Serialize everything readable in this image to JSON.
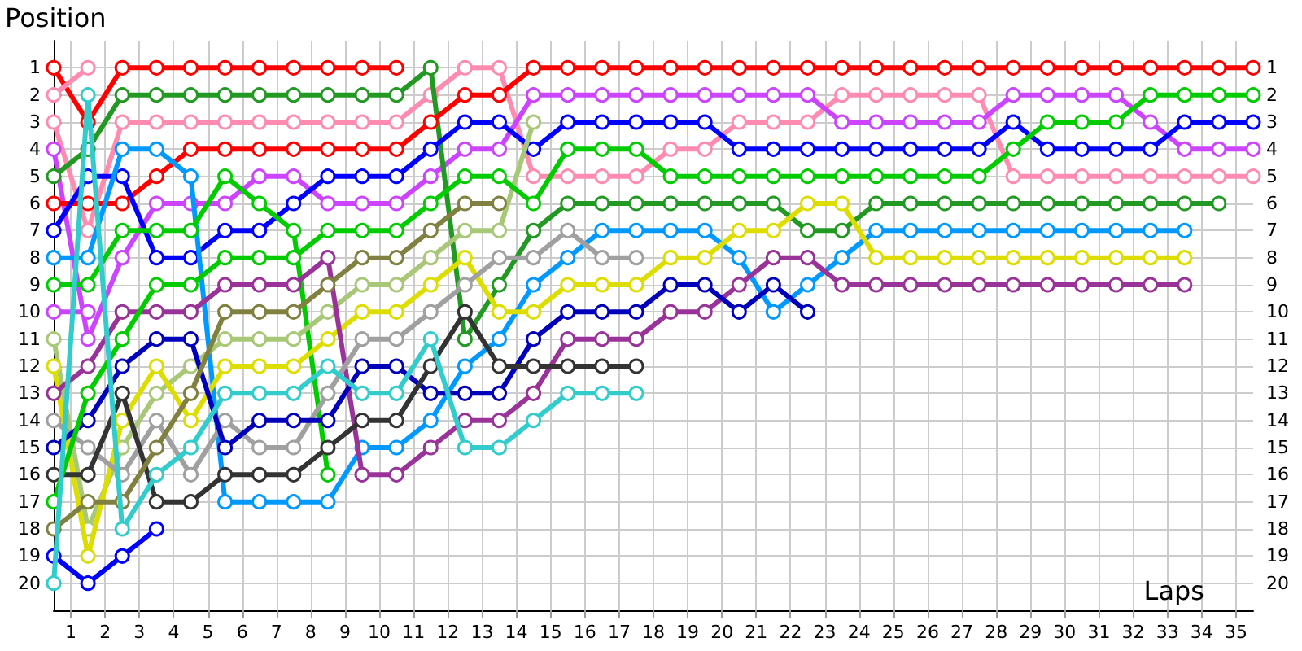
{
  "chart_data": {
    "type": "line",
    "xlabel": "Laps",
    "ylabel": "Position",
    "x": [
      0,
      1,
      2,
      3,
      4,
      5,
      6,
      7,
      8,
      9,
      10,
      11,
      12,
      13,
      14,
      15,
      16,
      17,
      18,
      19,
      20,
      21,
      22,
      23,
      24,
      25,
      26,
      27,
      28,
      29,
      30,
      31,
      32,
      33,
      34,
      35
    ],
    "xlim": [
      0,
      35
    ],
    "xticks": [
      {
        "value": 0.5,
        "label": "1"
      },
      {
        "value": 1.5,
        "label": "2"
      },
      {
        "value": 2.5,
        "label": "3"
      },
      {
        "value": 3.5,
        "label": "4"
      },
      {
        "value": 4.5,
        "label": "5"
      },
      {
        "value": 5.5,
        "label": "6"
      },
      {
        "value": 6.5,
        "label": "7"
      },
      {
        "value": 7.5,
        "label": "8"
      },
      {
        "value": 8.5,
        "label": "9"
      },
      {
        "value": 9.5,
        "label": "10"
      },
      {
        "value": 10.5,
        "label": "11"
      },
      {
        "value": 11.5,
        "label": "12"
      },
      {
        "value": 12.5,
        "label": "13"
      },
      {
        "value": 13.5,
        "label": "14"
      },
      {
        "value": 14.5,
        "label": "15"
      },
      {
        "value": 15.5,
        "label": "16"
      },
      {
        "value": 16.5,
        "label": "17"
      },
      {
        "value": 17.5,
        "label": "18"
      },
      {
        "value": 18.5,
        "label": "19"
      },
      {
        "value": 19.5,
        "label": "20"
      },
      {
        "value": 20.5,
        "label": "21"
      },
      {
        "value": 21.5,
        "label": "22"
      },
      {
        "value": 22.5,
        "label": "23"
      },
      {
        "value": 23.5,
        "label": "24"
      },
      {
        "value": 24.5,
        "label": "25"
      },
      {
        "value": 25.5,
        "label": "26"
      },
      {
        "value": 26.5,
        "label": "27"
      },
      {
        "value": 27.5,
        "label": "28"
      },
      {
        "value": 28.5,
        "label": "29"
      },
      {
        "value": 29.5,
        "label": "30"
      },
      {
        "value": 30.5,
        "label": "31"
      },
      {
        "value": 31.5,
        "label": "32"
      },
      {
        "value": 32.5,
        "label": "33"
      },
      {
        "value": 33.5,
        "label": "34"
      },
      {
        "value": 34.5,
        "label": "35"
      }
    ],
    "ylim": [
      21,
      0
    ],
    "yticks": [
      1,
      2,
      3,
      4,
      5,
      6,
      7,
      8,
      9,
      10,
      11,
      12,
      13,
      14,
      15,
      16,
      17,
      18,
      19,
      20
    ],
    "y2lim": [
      21,
      0
    ],
    "y2ticks": [
      1,
      2,
      3,
      4,
      5,
      6,
      7,
      8,
      9,
      10,
      11,
      12,
      13,
      14,
      15,
      16,
      17,
      18,
      19,
      20
    ],
    "grid": true,
    "legend": false,
    "marker": "circle",
    "line_style": "solid",
    "series": [
      {
        "color": "#ff0000",
        "values": [
          1,
          3,
          1,
          1,
          1,
          1,
          1,
          1,
          1,
          1,
          1,
          null,
          null,
          null,
          null,
          null,
          null,
          null,
          null,
          null,
          null,
          null,
          null,
          null,
          null,
          null,
          null,
          null,
          null,
          null,
          null,
          null,
          null,
          null,
          null,
          null
        ]
      },
      {
        "color": "#ff8cb0",
        "values": [
          2,
          1,
          null,
          null,
          null,
          null,
          null,
          null,
          null,
          null,
          null,
          null,
          null,
          null,
          null,
          null,
          null,
          null,
          null,
          null,
          null,
          null,
          null,
          null,
          null,
          null,
          null,
          null,
          null,
          null,
          null,
          null,
          null,
          null,
          null,
          null
        ]
      },
      {
        "color": "#ff8cb0",
        "values": [
          3,
          7,
          3,
          3,
          3,
          3,
          3,
          3,
          3,
          3,
          3,
          2,
          1,
          1,
          5,
          5,
          5,
          5,
          4,
          4,
          3,
          3,
          3,
          2,
          2,
          2,
          2,
          2,
          5,
          5,
          5,
          5,
          5,
          5,
          5,
          5
        ]
      },
      {
        "color": "#cc44ff",
        "values": [
          4,
          11,
          8,
          6,
          6,
          6,
          5,
          5,
          6,
          6,
          6,
          5,
          4,
          4,
          2,
          2,
          2,
          2,
          2,
          2,
          2,
          2,
          2,
          3,
          3,
          3,
          3,
          3,
          2,
          2,
          2,
          2,
          3,
          4,
          4,
          4
        ]
      },
      {
        "color": "#229922",
        "values": [
          5,
          4,
          2,
          2,
          2,
          2,
          2,
          2,
          2,
          2,
          2,
          1,
          11,
          9,
          7,
          6,
          6,
          6,
          6,
          6,
          6,
          6,
          7,
          7,
          6,
          6,
          6,
          6,
          6,
          6,
          6,
          6,
          6,
          6,
          6,
          null
        ]
      },
      {
        "color": "#ff0000",
        "values": [
          6,
          6,
          6,
          5,
          4,
          4,
          4,
          4,
          4,
          4,
          4,
          3,
          2,
          2,
          1,
          1,
          1,
          1,
          1,
          1,
          1,
          1,
          1,
          1,
          1,
          1,
          1,
          1,
          1,
          1,
          1,
          1,
          1,
          1,
          1,
          1
        ]
      },
      {
        "color": "#0000ff",
        "values": [
          7,
          5,
          5,
          8,
          8,
          7,
          7,
          6,
          5,
          5,
          5,
          4,
          3,
          3,
          4,
          3,
          3,
          3,
          3,
          3,
          4,
          4,
          4,
          4,
          4,
          4,
          4,
          4,
          3,
          4,
          4,
          4,
          4,
          3,
          3,
          3
        ]
      },
      {
        "color": "#0099ff",
        "values": [
          8,
          8,
          4,
          4,
          5,
          17,
          17,
          17,
          17,
          15,
          15,
          14,
          12,
          11,
          9,
          8,
          7,
          7,
          7,
          7,
          8,
          10,
          9,
          8,
          7,
          7,
          7,
          7,
          7,
          7,
          7,
          7,
          7,
          7,
          null,
          null
        ]
      },
      {
        "color": "#00cc00",
        "values": [
          9,
          9,
          7,
          7,
          7,
          5,
          6,
          7,
          16,
          null,
          null,
          null,
          null,
          null,
          null,
          null,
          null,
          null,
          null,
          null,
          null,
          null,
          null,
          null,
          null,
          null,
          null,
          null,
          null,
          null,
          null,
          null,
          null,
          null,
          null,
          null
        ]
      },
      {
        "color": "#cc44ff",
        "values": [
          10,
          10,
          null,
          null,
          null,
          null,
          null,
          null,
          null,
          null,
          null,
          null,
          null,
          null,
          null,
          null,
          null,
          null,
          null,
          null,
          null,
          null,
          null,
          null,
          null,
          null,
          null,
          null,
          null,
          null,
          null,
          null,
          null,
          null,
          null,
          null
        ]
      },
      {
        "color": "#a8c878",
        "values": [
          11,
          18,
          15,
          13,
          12,
          11,
          11,
          11,
          10,
          9,
          9,
          8,
          7,
          7,
          3,
          null,
          null,
          null,
          null,
          null,
          null,
          null,
          null,
          null,
          null,
          null,
          null,
          null,
          null,
          null,
          null,
          null,
          null,
          null,
          null,
          null
        ]
      },
      {
        "color": "#dddd00",
        "values": [
          12,
          19,
          14,
          12,
          14,
          12,
          12,
          12,
          11,
          10,
          10,
          9,
          8,
          10,
          10,
          9,
          9,
          9,
          8,
          8,
          7,
          7,
          6,
          6,
          8,
          8,
          8,
          8,
          8,
          8,
          8,
          8,
          8,
          8,
          null,
          null
        ]
      },
      {
        "color": "#993399",
        "values": [
          13,
          12,
          10,
          10,
          10,
          9,
          9,
          9,
          8,
          16,
          16,
          15,
          14,
          14,
          13,
          11,
          11,
          11,
          10,
          10,
          9,
          8,
          8,
          9,
          9,
          9,
          9,
          9,
          9,
          9,
          9,
          9,
          9,
          9,
          null,
          null
        ]
      },
      {
        "color": "#a0a0a0",
        "values": [
          14,
          15,
          16,
          14,
          16,
          14,
          15,
          15,
          13,
          11,
          11,
          10,
          9,
          8,
          8,
          7,
          8,
          8,
          null,
          null,
          null,
          null,
          null,
          null,
          null,
          null,
          null,
          null,
          null,
          null,
          null,
          null,
          null,
          null,
          null,
          null
        ]
      },
      {
        "color": "#0000bb",
        "values": [
          15,
          14,
          12,
          11,
          11,
          15,
          14,
          14,
          14,
          12,
          12,
          13,
          13,
          13,
          11,
          10,
          10,
          10,
          9,
          9,
          10,
          9,
          10,
          null,
          null,
          null,
          null,
          null,
          null,
          null,
          null,
          null,
          null,
          null,
          null,
          null
        ]
      },
      {
        "color": "#333333",
        "values": [
          16,
          16,
          13,
          17,
          17,
          16,
          16,
          16,
          15,
          14,
          14,
          12,
          10,
          12,
          12,
          12,
          12,
          12,
          null,
          null,
          null,
          null,
          null,
          null,
          null,
          null,
          null,
          null,
          null,
          null,
          null,
          null,
          null,
          null,
          null,
          null
        ]
      },
      {
        "color": "#00cc00",
        "values": [
          17,
          13,
          11,
          9,
          9,
          8,
          8,
          8,
          7,
          7,
          7,
          6,
          5,
          5,
          6,
          4,
          4,
          4,
          5,
          5,
          5,
          5,
          5,
          5,
          5,
          5,
          5,
          5,
          4,
          3,
          3,
          3,
          2,
          2,
          2,
          2
        ]
      },
      {
        "color": "#808040",
        "values": [
          18,
          17,
          17,
          15,
          13,
          10,
          10,
          10,
          9,
          8,
          8,
          7,
          6,
          6,
          null,
          null,
          null,
          null,
          null,
          null,
          null,
          null,
          null,
          null,
          null,
          null,
          null,
          null,
          null,
          null,
          null,
          null,
          null,
          null,
          null,
          null
        ]
      },
      {
        "color": "#0000ff",
        "values": [
          19,
          20,
          19,
          18,
          null,
          null,
          null,
          null,
          null,
          null,
          null,
          null,
          null,
          null,
          null,
          null,
          null,
          null,
          null,
          null,
          null,
          null,
          null,
          null,
          null,
          null,
          null,
          null,
          null,
          null,
          null,
          null,
          null,
          null,
          null,
          null
        ]
      },
      {
        "color": "#33cccc",
        "values": [
          20,
          2,
          18,
          16,
          15,
          13,
          13,
          13,
          12,
          13,
          13,
          11,
          15,
          15,
          14,
          13,
          13,
          13,
          null,
          null,
          null,
          null,
          null,
          null,
          null,
          null,
          null,
          null,
          null,
          null,
          null,
          null,
          null,
          null,
          null,
          null
        ]
      }
    ]
  }
}
